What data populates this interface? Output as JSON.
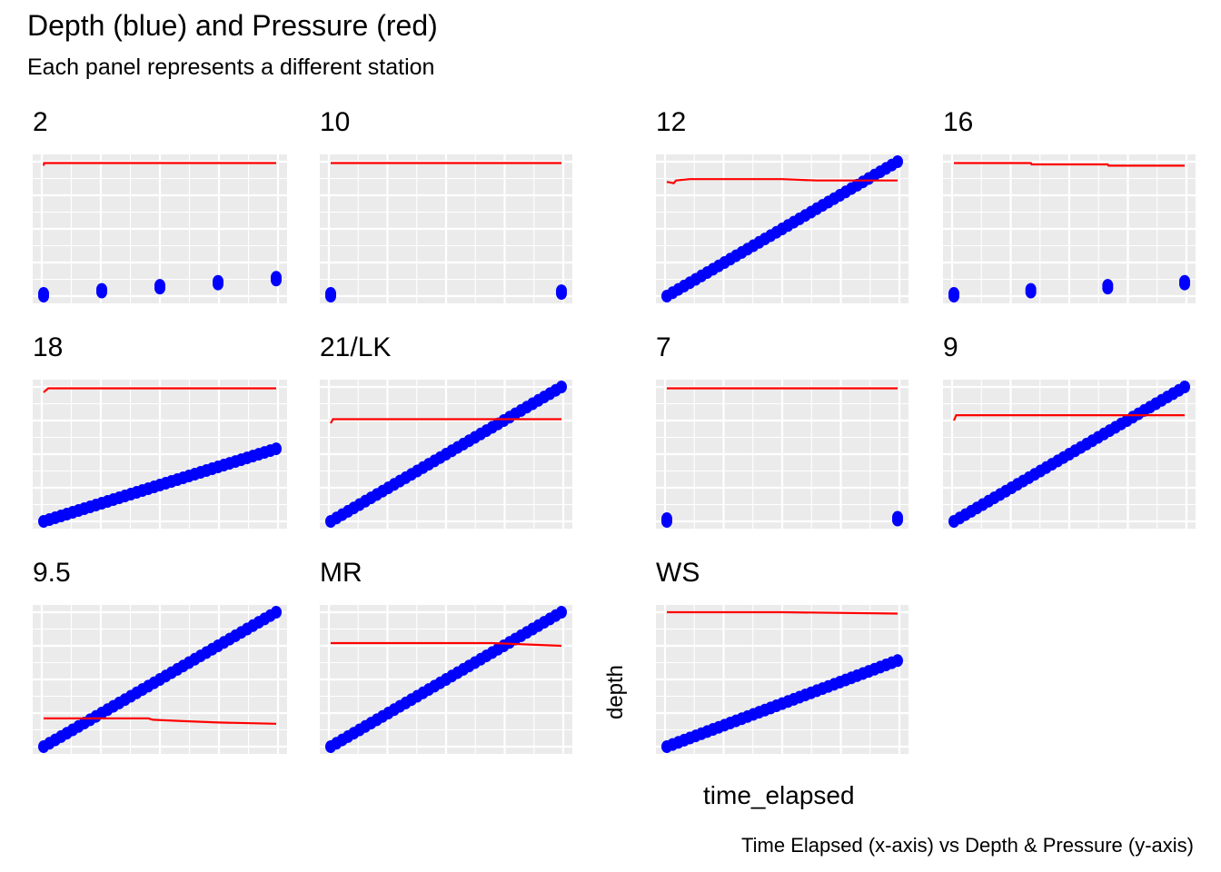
{
  "chart_data": {
    "type": "scatter",
    "title": "Depth (blue) and Pressure (red)",
    "subtitle": "Each panel represents a different station",
    "caption": "Time Elapsed (x-axis) vs Depth & Pressure (y-axis)",
    "xlabel": "time_elapsed",
    "ylabel": "depth",
    "colors": {
      "depth": "#0000FF",
      "pressure": "#FF0000",
      "panel_bg": "#EBEBEB",
      "grid": "#FFFFFF"
    },
    "grid": true,
    "facet_scales": "free",
    "panels": [
      {
        "station": "2",
        "depth_points": [
          [
            0,
            0
          ],
          [
            1,
            0.03
          ],
          [
            2,
            0.06
          ],
          [
            3,
            0.09
          ],
          [
            4,
            0.12
          ]
        ],
        "pressure_line": [
          [
            0,
            0.97
          ],
          [
            0.01,
            0.99
          ],
          [
            4,
            0.99
          ]
        ]
      },
      {
        "station": "10",
        "depth_points": [
          [
            0,
            0
          ],
          [
            1,
            0.02
          ]
        ],
        "pressure_line": [
          [
            0,
            0.99
          ],
          [
            1,
            0.99
          ]
        ]
      },
      {
        "station": "12",
        "depth_points": [
          [
            0,
            0
          ],
          [
            1,
            1
          ]
        ],
        "pressure_line": [
          [
            0,
            0.85
          ],
          [
            0.03,
            0.84
          ],
          [
            0.04,
            0.86
          ],
          [
            0.1,
            0.87
          ],
          [
            0.5,
            0.87
          ],
          [
            0.65,
            0.86
          ],
          [
            1,
            0.86
          ]
        ]
      },
      {
        "station": "16",
        "depth_points": [
          [
            0,
            0
          ],
          [
            1,
            0.03
          ],
          [
            2,
            0.06
          ],
          [
            3,
            0.09
          ]
        ],
        "pressure_line": [
          [
            0,
            0.99
          ],
          [
            1,
            0.99
          ],
          [
            1.01,
            0.98
          ],
          [
            2,
            0.98
          ],
          [
            2.01,
            0.97
          ],
          [
            3,
            0.97
          ]
        ]
      },
      {
        "station": "18",
        "depth_points": [
          [
            0,
            0
          ],
          [
            1,
            0.54
          ]
        ],
        "pressure_line": [
          [
            0,
            0.96
          ],
          [
            0.02,
            0.99
          ],
          [
            1,
            0.99
          ]
        ]
      },
      {
        "station": "21/LK",
        "depth_points": [
          [
            0,
            0
          ],
          [
            1,
            1
          ]
        ],
        "pressure_line": [
          [
            0,
            0.73
          ],
          [
            0.01,
            0.76
          ],
          [
            1,
            0.76
          ]
        ]
      },
      {
        "station": "7",
        "depth_points": [
          [
            0,
            0
          ],
          [
            1,
            0.01
          ]
        ],
        "pressure_line": [
          [
            0,
            0.99
          ],
          [
            1,
            0.99
          ]
        ]
      },
      {
        "station": "9",
        "depth_points": [
          [
            0,
            0
          ],
          [
            1,
            1
          ]
        ],
        "pressure_line": [
          [
            0,
            0.75
          ],
          [
            0.01,
            0.79
          ],
          [
            1,
            0.79
          ]
        ]
      },
      {
        "station": "9.5",
        "depth_points": [
          [
            0,
            0
          ],
          [
            1,
            1
          ]
        ],
        "pressure_line": [
          [
            0,
            0.21
          ],
          [
            0.45,
            0.21
          ],
          [
            0.47,
            0.2
          ],
          [
            0.6,
            0.19
          ],
          [
            0.75,
            0.18
          ],
          [
            1,
            0.17
          ]
        ]
      },
      {
        "station": "MR",
        "depth_points": [
          [
            0,
            0
          ],
          [
            1,
            1
          ]
        ],
        "pressure_line": [
          [
            0,
            0.77
          ],
          [
            0.7,
            0.77
          ],
          [
            1,
            0.75
          ]
        ]
      },
      {
        "station": "WS",
        "depth_points": [
          [
            0,
            0
          ],
          [
            1,
            0.64
          ]
        ],
        "pressure_line": [
          [
            0,
            1
          ],
          [
            0.5,
            1
          ],
          [
            1,
            0.99
          ]
        ]
      }
    ]
  }
}
